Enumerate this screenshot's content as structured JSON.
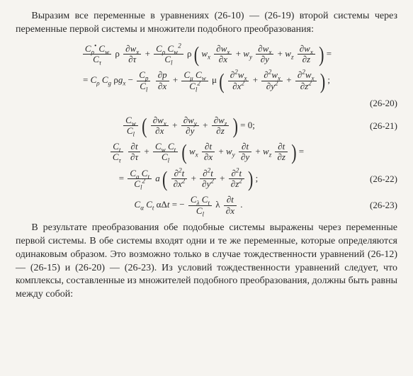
{
  "colors": {
    "text": "#2a2a2a",
    "background": "#f6f4f0",
    "rule": "#2a2a2a"
  },
  "font": {
    "family": "Times New Roman",
    "body_size_pt": 11,
    "eq_size_pt": 10
  },
  "p1": "Выразим все переменные в уравнениях (26-10) — (26-19) второй системы через переменные первой системы и множители подобного преобразования:",
  "p2": "В результате преобразования обе подобные системы выражены через переменные первой системы. В обе системы входят одни и те же переменные, которые определяются одинаковым образом. Это возможно только в случае тождественности уравнений (26-12) — (26-15) и (26-20) — (26-23). Из условий тождественности уравнений следует, что комплексы, составленные из множителей подобного преобразования, должны быть равны между собой:",
  "equations": [
    {
      "id": "eq-26-20",
      "number": "(26-20)",
      "line1_html": "<span class='fr'><span class='n it'>C<sub>ρ</sub><sup>•</sup> C<sub>w</sub></span><span class='d it'>C<sub>τ</sub></span></span> ρ <span class='fr'><span class='n it'>∂w<sub>x</sub></span><span class='d it'>∂τ</span></span> + <span class='fr'><span class='n it'>C<sub>ρ</sub> C<sub>w</sub><sup>2</sup></span><span class='d it'>C<sub>l</sub></span></span> ρ <span class='big'>(</span> <span class='it'>w<sub>x</sub></span> <span class='fr'><span class='n it'>∂w<sub>x</sub></span><span class='d it'>∂x</span></span> + <span class='it'>w<sub>y</sub></span> <span class='fr'><span class='n it'>∂w<sub>x</sub></span><span class='d it'>∂y</span></span> + <span class='it'>w<sub>z</sub></span> <span class='fr'><span class='n it'>∂w<sub>x</sub></span><span class='d it'>∂z</span></span> <span class='big'>)</span> =",
      "line2_html": "= <span class='it'>C<sub>ρ</sub> C<sub>g</sub></span> ρ<span class='it'>g<sub>x</sub></span> − <span class='fr'><span class='n it'>C<sub>p</sub></span><span class='d it'>C<sub>l</sub></span></span> <span class='fr'><span class='n it'>∂p</span><span class='d it'>∂x</span></span> + <span class='fr'><span class='n it'>C<sub>μ</sub> C<sub>w</sub></span><span class='d it'>C<sub>l</sub><sup>2</sup></span></span> μ <span class='big'>(</span> <span class='fr'><span class='n it'>∂<sup>2</sup>w<sub>x</sub></span><span class='d it'>∂x<sup>2</sup></span></span> + <span class='fr'><span class='n it'>∂<sup>2</sup>w<sub>x</sub></span><span class='d it'>∂y<sup>2</sup></span></span> + <span class='fr'><span class='n it'>∂<sup>2</sup>w<sub>x</sub></span><span class='d it'>∂z<sup>2</sup></span></span> <span class='big'>)</span> ;"
    },
    {
      "id": "eq-26-21",
      "number": "(26-21)",
      "line1_html": "<span class='fr'><span class='n it'>C<sub>w</sub></span><span class='d it'>C<sub>l</sub></span></span> <span class='big'>(</span> <span class='fr'><span class='n it'>∂w<sub>x</sub></span><span class='d it'>∂x</span></span> + <span class='fr'><span class='n it'>∂w<sub>y</sub></span><span class='d it'>∂y</span></span> + <span class='fr'><span class='n it'>∂w<sub>z</sub></span><span class='d it'>∂z</span></span> <span class='big'>)</span> = 0;"
    },
    {
      "id": "eq-26-22",
      "number": "(26-22)",
      "line1_html": "<span class='fr'><span class='n it'>C<sub>t</sub></span><span class='d it'>C<sub>τ</sub></span></span> <span class='fr'><span class='n it'>∂t</span><span class='d it'>∂τ</span></span> + <span class='fr'><span class='n it'>C<sub>w</sub> C<sub>t</sub></span><span class='d it'>C<sub>l</sub></span></span> <span class='big'>(</span> <span class='it'>w<sub>x</sub></span> <span class='fr'><span class='n it'>∂t</span><span class='d it'>∂x</span></span> + <span class='it'>w<sub>y</sub></span> <span class='fr'><span class='n it'>∂t</span><span class='d it'>∂y</span></span> + <span class='it'>w<sub>z</sub></span> <span class='fr'><span class='n it'>∂t</span><span class='d it'>∂z</span></span> <span class='big'>)</span> =",
      "line2_html": "= <span class='fr'><span class='n it'>C<sub>a</sub> C<sub>t</sub></span><span class='d it'>C<sub>l</sub><sup>2</sup></span></span> <span class='it'>a</span> <span class='big'>(</span> <span class='fr'><span class='n it'>∂<sup>2</sup>t</span><span class='d it'>∂x<sup>2</sup></span></span> + <span class='fr'><span class='n it'>∂<sup>2</sup>t</span><span class='d it'>∂y<sup>2</sup></span></span> + <span class='fr'><span class='n it'>∂<sup>2</sup>t</span><span class='d it'>∂z<sup>2</sup></span></span> <span class='big'>)</span> ;"
    },
    {
      "id": "eq-26-23",
      "number": "(26-23)",
      "line1_html": "<span class='it'>C<sub>α</sub> C<sub>t</sub></span> αΔ<span class='it'>t</span> = − <span class='fr'><span class='n it'>C<sub>λ</sub> C<sub>t</sub></span><span class='d it'>C<sub>l</sub></span></span>  λ <span class='fr'><span class='n it'>∂t</span><span class='d it'>∂x</span></span> ."
    }
  ]
}
